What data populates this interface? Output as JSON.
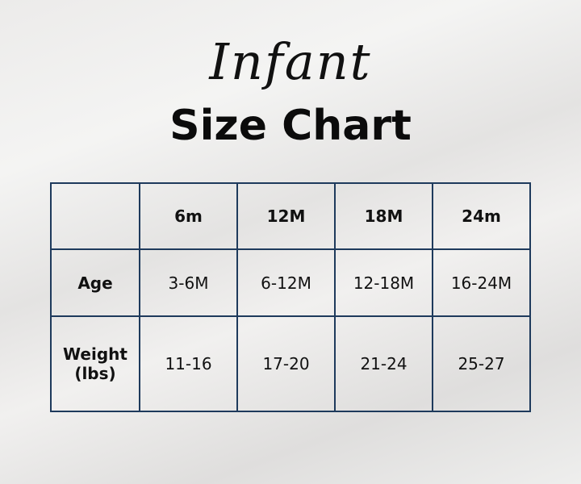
{
  "heading": {
    "script": "Infant",
    "title": "Size Chart"
  },
  "table": {
    "columns": [
      "",
      "6m",
      "12M",
      "18M",
      "24m"
    ],
    "rows": [
      {
        "label": "Age",
        "values": [
          "3-6M",
          "6-12M",
          "12-18M",
          "16-24M"
        ]
      },
      {
        "label_line1": "Weight",
        "label_line2": "(lbs)",
        "values": [
          "11-16",
          "17-20",
          "21-24",
          "25-27"
        ]
      }
    ]
  },
  "colors": {
    "border": "#1e3a5c",
    "text": "#111111"
  }
}
